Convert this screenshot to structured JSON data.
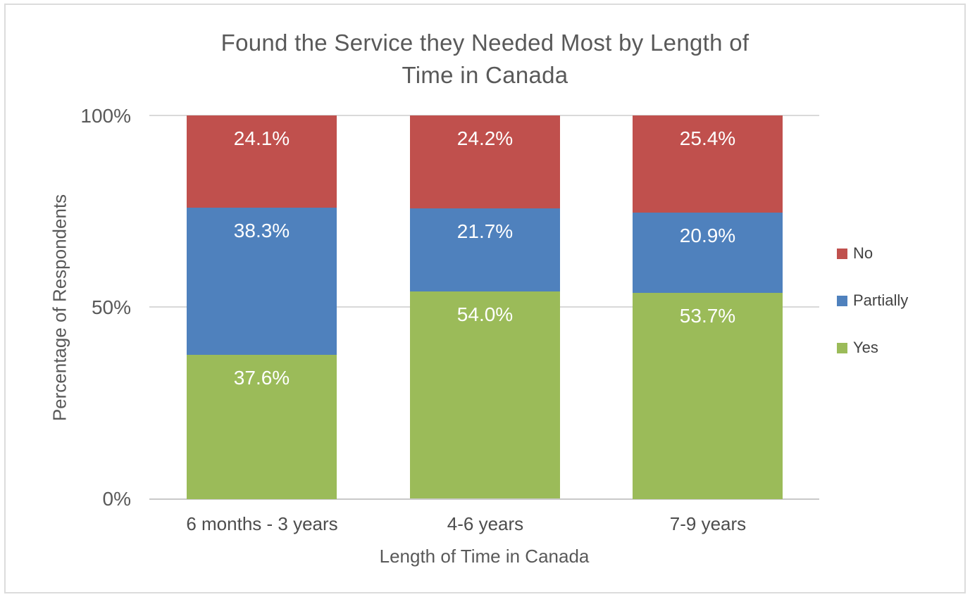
{
  "chart_data": {
    "type": "bar",
    "stacked": true,
    "title": "Found the Service they Needed Most by Length of Time in Canada",
    "title_lines": [
      "Found the Service they Needed Most by Length of",
      "Time in Canada"
    ],
    "xlabel": "Length of Time in Canada",
    "ylabel": "Percentage of Respondents",
    "categories": [
      "6 months - 3 years",
      "4-6 years",
      "7-9 years"
    ],
    "series": [
      {
        "name": "No",
        "color": "#C0504D",
        "values": [
          24.1,
          24.2,
          25.4
        ]
      },
      {
        "name": "Partially",
        "color": "#4F81BD",
        "values": [
          38.3,
          21.7,
          20.9
        ]
      },
      {
        "name": "Yes",
        "color": "#9BBB59",
        "values": [
          37.6,
          54.0,
          53.7
        ]
      }
    ],
    "stack_order_bottom_to_top": [
      "Yes",
      "Partially",
      "No"
    ],
    "data_labels": [
      [
        "24.1%",
        "24.2%",
        "25.4%"
      ],
      [
        "38.3%",
        "21.7%",
        "20.9%"
      ],
      [
        "37.6%",
        "54.0%",
        "53.7%"
      ]
    ],
    "yticks": [
      "0%",
      "50%",
      "100%"
    ],
    "ylim": [
      0,
      100
    ],
    "grid": "horizontal",
    "legend_position": "right",
    "colors": {
      "text_gray": "#595959",
      "gridline": "#D9D9D9",
      "axis_line": "#C9C9C9",
      "frame_border": "#DCDCDC",
      "label_text": "#FFFFFF"
    }
  }
}
